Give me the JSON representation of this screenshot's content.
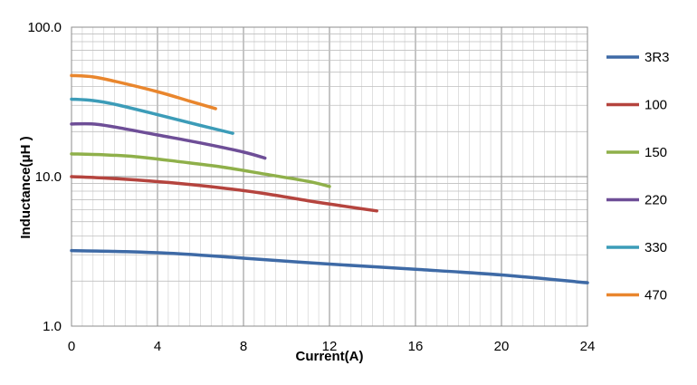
{
  "chart_data": {
    "type": "line",
    "title": "",
    "xlabel": "Current(A)",
    "ylabel": "Inductance(μH )",
    "xlim": [
      0,
      24
    ],
    "ylim": [
      1,
      100
    ],
    "y_scale": "log",
    "grid": true,
    "legend_position": "right",
    "x_ticks": [
      "0",
      "4",
      "8",
      "12",
      "16",
      "20",
      "24"
    ],
    "y_ticks": [
      "1.0",
      "10.0",
      "100.0"
    ],
    "series": [
      {
        "name": "3R3",
        "color": "#3e6aa6",
        "points": [
          [
            0,
            3.2
          ],
          [
            2.5,
            3.15
          ],
          [
            5,
            3.05
          ],
          [
            8,
            2.85
          ],
          [
            12,
            2.6
          ],
          [
            16,
            2.4
          ],
          [
            20,
            2.2
          ],
          [
            24,
            1.95
          ]
        ]
      },
      {
        "name": "100",
        "color": "#b5443e",
        "points": [
          [
            0,
            10.0
          ],
          [
            1.5,
            9.8
          ],
          [
            3,
            9.5
          ],
          [
            5,
            9.0
          ],
          [
            7,
            8.4
          ],
          [
            9,
            7.7
          ],
          [
            11,
            6.9
          ],
          [
            12.5,
            6.4
          ],
          [
            14.2,
            5.9
          ]
        ]
      },
      {
        "name": "150",
        "color": "#8fb04a",
        "points": [
          [
            0,
            14.2
          ],
          [
            1.5,
            14.0
          ],
          [
            3,
            13.6
          ],
          [
            5,
            12.6
          ],
          [
            7,
            11.6
          ],
          [
            9,
            10.4
          ],
          [
            11,
            9.3
          ],
          [
            12,
            8.6
          ]
        ]
      },
      {
        "name": "220",
        "color": "#6e4e97",
        "points": [
          [
            0,
            22.5
          ],
          [
            1,
            22.5
          ],
          [
            2,
            21.5
          ],
          [
            4,
            19.0
          ],
          [
            6,
            16.8
          ],
          [
            8,
            14.6
          ],
          [
            9,
            13.3
          ]
        ]
      },
      {
        "name": "330",
        "color": "#3c9cb8",
        "points": [
          [
            0,
            33.0
          ],
          [
            1,
            32.3
          ],
          [
            2,
            30.5
          ],
          [
            4,
            26.0
          ],
          [
            6,
            22.0
          ],
          [
            7.5,
            19.5
          ]
        ]
      },
      {
        "name": "470",
        "color": "#e9862d",
        "points": [
          [
            0,
            47.5
          ],
          [
            1,
            46.5
          ],
          [
            2,
            43.5
          ],
          [
            4,
            37.0
          ],
          [
            5.5,
            32.0
          ],
          [
            6.7,
            28.5
          ]
        ]
      }
    ]
  }
}
